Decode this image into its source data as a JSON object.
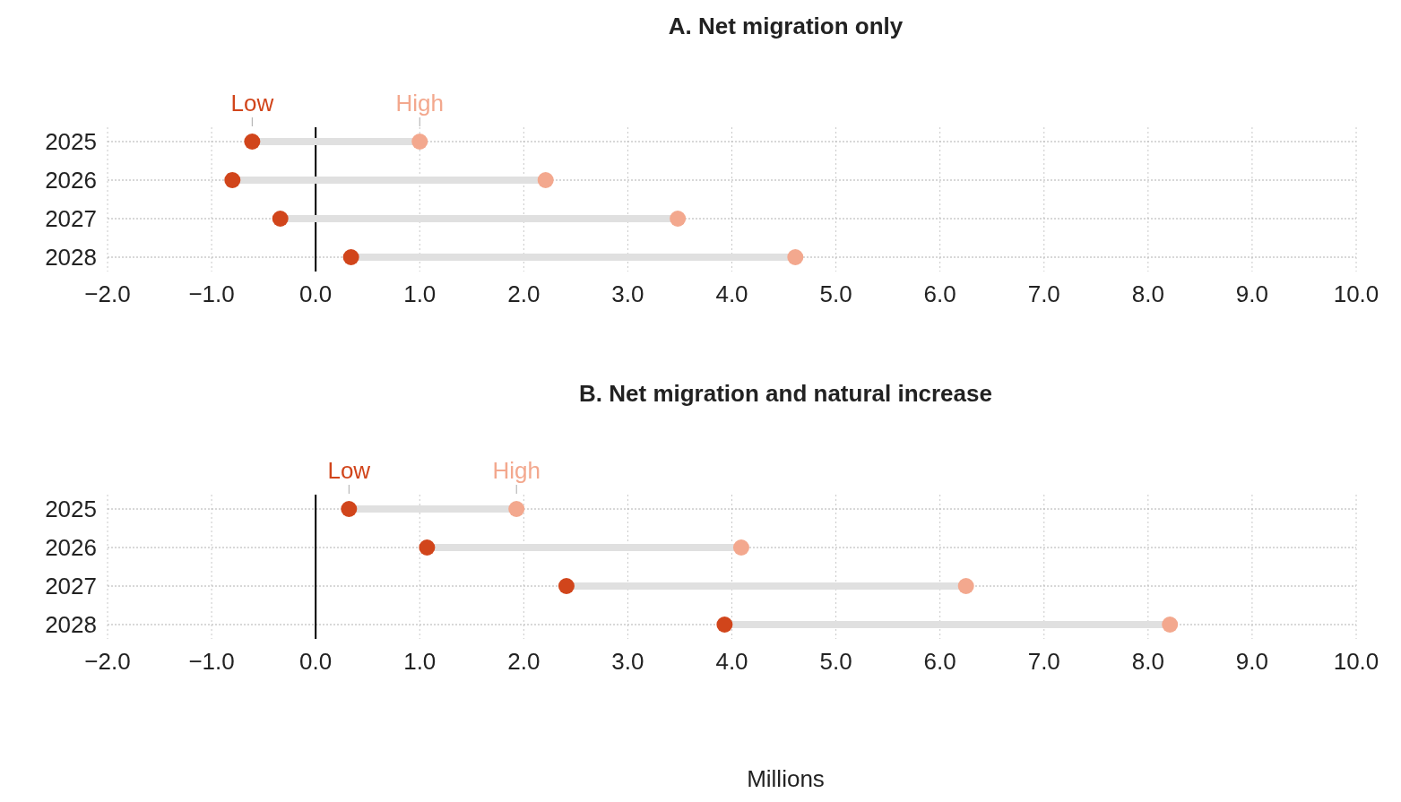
{
  "chart_data": [
    {
      "type": "scatter",
      "orientation": "horizontal",
      "title": "A. Net migration only",
      "categories": [
        "2025",
        "2026",
        "2027",
        "2028"
      ],
      "series": [
        {
          "name": "Low",
          "color": "#d1451b",
          "values": [
            -0.61,
            -0.8,
            -0.34,
            0.34
          ]
        },
        {
          "name": "High",
          "color": "#f3a88e",
          "values": [
            1.0,
            2.21,
            3.48,
            4.61
          ]
        }
      ],
      "xlim": [
        -2,
        10
      ],
      "xticks": [
        {
          "value": -2,
          "label": "−2.0"
        },
        {
          "value": -1,
          "label": "−1.0"
        },
        {
          "value": 0,
          "label": "0.0"
        },
        {
          "value": 1,
          "label": "1.0"
        },
        {
          "value": 2,
          "label": "2.0"
        },
        {
          "value": 3,
          "label": "3.0"
        },
        {
          "value": 4,
          "label": "4.0"
        },
        {
          "value": 5,
          "label": "5.0"
        },
        {
          "value": 6,
          "label": "6.0"
        },
        {
          "value": 7,
          "label": "7.0"
        },
        {
          "value": 8,
          "label": "8.0"
        },
        {
          "value": 9,
          "label": "9.0"
        },
        {
          "value": 10,
          "label": "10.0"
        }
      ],
      "ref_lines": [
        {
          "axis": "x",
          "value": 0,
          "color": "#000000"
        }
      ],
      "grid": true,
      "marker": "circle"
    },
    {
      "type": "scatter",
      "orientation": "horizontal",
      "title": "B. Net migration and natural increase",
      "xlabel": "Millions",
      "categories": [
        "2025",
        "2026",
        "2027",
        "2028"
      ],
      "series": [
        {
          "name": "Low",
          "color": "#d1451b",
          "values": [
            0.32,
            1.07,
            2.41,
            3.93
          ]
        },
        {
          "name": "High",
          "color": "#f3a88e",
          "values": [
            1.93,
            4.09,
            6.25,
            8.21
          ]
        }
      ],
      "xlim": [
        -2,
        10
      ],
      "xticks": [
        {
          "value": -2,
          "label": "−2.0"
        },
        {
          "value": -1,
          "label": "−1.0"
        },
        {
          "value": 0,
          "label": "0.0"
        },
        {
          "value": 1,
          "label": "1.0"
        },
        {
          "value": 2,
          "label": "2.0"
        },
        {
          "value": 3,
          "label": "3.0"
        },
        {
          "value": 4,
          "label": "4.0"
        },
        {
          "value": 5,
          "label": "5.0"
        },
        {
          "value": 6,
          "label": "6.0"
        },
        {
          "value": 7,
          "label": "7.0"
        },
        {
          "value": 8,
          "label": "8.0"
        },
        {
          "value": 9,
          "label": "9.0"
        },
        {
          "value": 10,
          "label": "10.0"
        }
      ],
      "ref_lines": [
        {
          "axis": "x",
          "value": 0,
          "color": "#000000"
        }
      ],
      "grid": true,
      "marker": "circle"
    }
  ]
}
